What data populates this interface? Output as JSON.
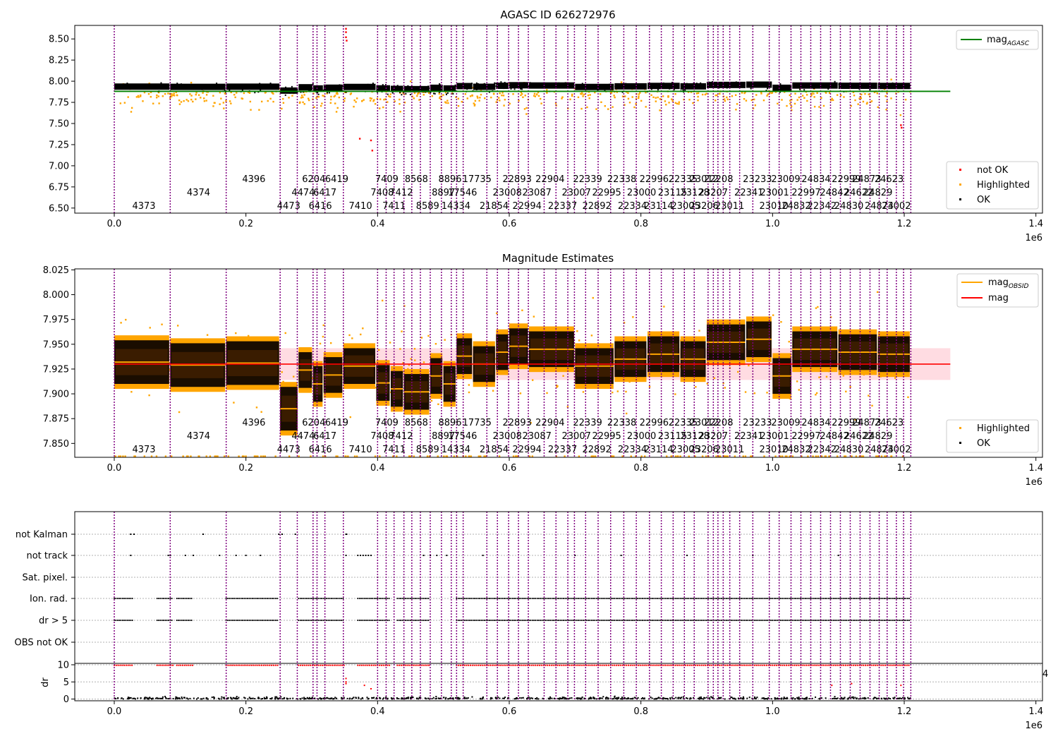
{
  "colors": {
    "obsid_line": "#800080",
    "agasc_mag_line": "#008000",
    "mag_line": "#ff0000",
    "mag_obsid": "#ffa500",
    "highlighted": "#ffa500",
    "not_ok": "#ff0000",
    "ok": "#000000",
    "mag_band": "#ffc0cb",
    "grid": "#b0b0b0"
  },
  "chart_data": [
    {
      "type": "scatter",
      "title": "AGASC ID 626272976",
      "xlabel": "",
      "ylabel": "",
      "xlim": [
        -60000,
        1410000
      ],
      "ylim": [
        6.44,
        8.66
      ],
      "x_ticks": [
        0,
        0.2,
        0.4,
        0.6,
        0.8,
        1.0,
        1.2,
        1.4
      ],
      "x_tick_labels": [
        "0.0",
        "0.2",
        "0.4",
        "0.6",
        "0.8",
        "1.0",
        "1.2",
        "1.4"
      ],
      "x_offset_label": "1e6",
      "y_ticks": [
        6.5,
        6.75,
        7.0,
        7.25,
        7.5,
        7.75,
        8.0,
        8.25,
        8.5
      ],
      "y_tick_labels": [
        "6.50",
        "6.75",
        "7.00",
        "7.25",
        "7.50",
        "7.75",
        "8.00",
        "8.25",
        "8.50"
      ],
      "lines": [
        {
          "name": "mag_AGASC",
          "label_main": "mag",
          "label_sub": "AGASC",
          "y": 7.88,
          "x_range": [
            0,
            1270000
          ]
        }
      ],
      "scatter_series": [
        {
          "name": "not OK",
          "marker_color": "#ff0000"
        },
        {
          "name": "Highlighted",
          "marker_color": "#ffa500"
        },
        {
          "name": "OK",
          "marker_color": "#000000"
        }
      ],
      "legend_upper": "top-right",
      "legend_lower": "bottom-right"
    },
    {
      "type": "scatter",
      "title": "Magnitude Estimates",
      "xlabel": "",
      "ylabel": "",
      "xlim": [
        -60000,
        1410000
      ],
      "ylim": [
        7.836,
        8.026
      ],
      "x_ticks": [
        0,
        0.2,
        0.4,
        0.6,
        0.8,
        1.0,
        1.2,
        1.4
      ],
      "x_tick_labels": [
        "0.0",
        "0.2",
        "0.4",
        "0.6",
        "0.8",
        "1.0",
        "1.2",
        "1.4"
      ],
      "x_offset_label": "1e6",
      "y_ticks": [
        7.85,
        7.875,
        7.9,
        7.925,
        7.95,
        7.975,
        8.0,
        8.025
      ],
      "y_tick_labels": [
        "7.850",
        "7.875",
        "7.900",
        "7.925",
        "7.950",
        "7.975",
        "8.000",
        "8.025"
      ],
      "lines": [
        {
          "name": "mag_OBSID",
          "label_main": "mag",
          "label_sub": "OBSID"
        },
        {
          "name": "mag",
          "label_main": "mag",
          "y": 7.93,
          "band": [
            7.914,
            7.946
          ],
          "x_range": [
            0,
            1270000
          ]
        }
      ],
      "scatter_series": [
        {
          "name": "Highlighted",
          "marker_color": "#ffa500"
        },
        {
          "name": "OK",
          "marker_color": "#000000"
        }
      ],
      "obsid_segments": [
        {
          "x0": 0,
          "x1": 85000,
          "mag": 7.932
        },
        {
          "x0": 85000,
          "x1": 170000,
          "mag": 7.929
        },
        {
          "x0": 170000,
          "x1": 252000,
          "mag": 7.931
        },
        {
          "x0": 252000,
          "x1": 280000,
          "mag": 7.885
        },
        {
          "x0": 280000,
          "x1": 302000,
          "mag": 7.924
        },
        {
          "x0": 302000,
          "x1": 318000,
          "mag": 7.91
        },
        {
          "x0": 318000,
          "x1": 348000,
          "mag": 7.919
        },
        {
          "x0": 348000,
          "x1": 398000,
          "mag": 7.928
        },
        {
          "x0": 398000,
          "x1": 420000,
          "mag": 7.911
        },
        {
          "x0": 420000,
          "x1": 440000,
          "mag": 7.905
        },
        {
          "x0": 440000,
          "x1": 480000,
          "mag": 7.902
        },
        {
          "x0": 480000,
          "x1": 500000,
          "mag": 7.918
        },
        {
          "x0": 500000,
          "x1": 520000,
          "mag": 7.91
        },
        {
          "x0": 520000,
          "x1": 545000,
          "mag": 7.938
        },
        {
          "x0": 545000,
          "x1": 580000,
          "mag": 7.93
        },
        {
          "x0": 580000,
          "x1": 600000,
          "mag": 7.942
        },
        {
          "x0": 600000,
          "x1": 630000,
          "mag": 7.948
        },
        {
          "x0": 630000,
          "x1": 700000,
          "mag": 7.945
        },
        {
          "x0": 700000,
          "x1": 760000,
          "mag": 7.928
        },
        {
          "x0": 760000,
          "x1": 810000,
          "mag": 7.935
        },
        {
          "x0": 810000,
          "x1": 860000,
          "mag": 7.94
        },
        {
          "x0": 860000,
          "x1": 900000,
          "mag": 7.935
        },
        {
          "x0": 900000,
          "x1": 960000,
          "mag": 7.952
        },
        {
          "x0": 960000,
          "x1": 1000000,
          "mag": 7.955
        },
        {
          "x0": 1000000,
          "x1": 1030000,
          "mag": 7.918
        },
        {
          "x0": 1030000,
          "x1": 1100000,
          "mag": 7.945
        },
        {
          "x0": 1100000,
          "x1": 1160000,
          "mag": 7.942
        },
        {
          "x0": 1160000,
          "x1": 1210000,
          "mag": 7.94
        }
      ],
      "legend_upper": "top-right",
      "legend_lower": "bottom-right"
    },
    {
      "type": "scatter",
      "title": "",
      "xlabel": "",
      "ylabel": "dr",
      "xlim": [
        -60000,
        1410000
      ],
      "x_ticks": [
        0,
        0.2,
        0.4,
        0.6,
        0.8,
        1.0,
        1.2,
        1.4
      ],
      "x_tick_labels": [
        "0.0",
        "0.2",
        "0.4",
        "0.6",
        "0.8",
        "1.0",
        "1.2",
        "1.4"
      ],
      "x_offset_label": "1e6",
      "flag_rows": [
        "not Kalman",
        "not track",
        "Sat. pixel.",
        "Ion. rad.",
        "dr > 5",
        "OBS not OK"
      ],
      "dr_ylim": [
        -0.5,
        10.2
      ],
      "dr_y_ticks": [
        0,
        5,
        10
      ],
      "dr_y_tick_labels": [
        "0",
        "5",
        "10"
      ],
      "right_edge_label": "4"
    }
  ],
  "obsid_lines_x": [
    0,
    85000,
    170000,
    252000,
    278000,
    302000,
    308000,
    320000,
    348000,
    400000,
    413000,
    425000,
    440000,
    452000,
    465000,
    480000,
    497000,
    512000,
    520000,
    530000,
    566000,
    582000,
    599000,
    614000,
    629000,
    653000,
    671000,
    689000,
    699000,
    716000,
    735000,
    754000,
    774000,
    793000,
    813000,
    831000,
    849000,
    866000,
    881000,
    902000,
    910000,
    917000,
    925000,
    935000,
    950000,
    970000,
    995000,
    1010000,
    1028000,
    1043000,
    1058000,
    1073000,
    1088000,
    1103000,
    1118000,
    1133000,
    1148000,
    1162000,
    1174000,
    1188000,
    1199000,
    1210000
  ],
  "obsid_labels": [
    {
      "text": "4373",
      "x": 45000,
      "row": 0
    },
    {
      "text": "4374",
      "x": 128000,
      "row": 1
    },
    {
      "text": "4396",
      "x": 212000,
      "row": 2
    },
    {
      "text": "4473",
      "x": 265000,
      "row": 0
    },
    {
      "text": "4474",
      "x": 287000,
      "row": 1
    },
    {
      "text": "6204",
      "x": 303000,
      "row": 2
    },
    {
      "text": "6416",
      "x": 313000,
      "row": 0
    },
    {
      "text": "6417",
      "x": 320000,
      "row": 1
    },
    {
      "text": "6419",
      "x": 338000,
      "row": 2
    },
    {
      "text": "7410",
      "x": 374000,
      "row": 0
    },
    {
      "text": "7408",
      "x": 407000,
      "row": 1
    },
    {
      "text": "7409",
      "x": 414000,
      "row": 2
    },
    {
      "text": "7411",
      "x": 425000,
      "row": 0
    },
    {
      "text": "7412",
      "x": 436000,
      "row": 1
    },
    {
      "text": "8568",
      "x": 459000,
      "row": 2
    },
    {
      "text": "8589",
      "x": 476000,
      "row": 0
    },
    {
      "text": "8897",
      "x": 500000,
      "row": 1
    },
    {
      "text": "8896",
      "x": 510000,
      "row": 2
    },
    {
      "text": "14334",
      "x": 519000,
      "row": 0
    },
    {
      "text": "17546",
      "x": 529000,
      "row": 1
    },
    {
      "text": "17735",
      "x": 551000,
      "row": 2
    },
    {
      "text": "21854",
      "x": 577000,
      "row": 0
    },
    {
      "text": "23008",
      "x": 597000,
      "row": 1
    },
    {
      "text": "22893",
      "x": 612000,
      "row": 2
    },
    {
      "text": "22994",
      "x": 627000,
      "row": 0
    },
    {
      "text": "23087",
      "x": 642000,
      "row": 1
    },
    {
      "text": "22904",
      "x": 662000,
      "row": 2
    },
    {
      "text": "22337",
      "x": 681000,
      "row": 0
    },
    {
      "text": "23007",
      "x": 702000,
      "row": 1
    },
    {
      "text": "22339",
      "x": 719000,
      "row": 2
    },
    {
      "text": "22892",
      "x": 733000,
      "row": 0
    },
    {
      "text": "22995",
      "x": 748000,
      "row": 1
    },
    {
      "text": "22338",
      "x": 771000,
      "row": 2
    },
    {
      "text": "22334",
      "x": 787000,
      "row": 0
    },
    {
      "text": "23000",
      "x": 801000,
      "row": 1
    },
    {
      "text": "22996",
      "x": 820000,
      "row": 2
    },
    {
      "text": "23114",
      "x": 827000,
      "row": 0
    },
    {
      "text": "23115",
      "x": 848000,
      "row": 1
    },
    {
      "text": "22335",
      "x": 864000,
      "row": 2
    },
    {
      "text": "23005",
      "x": 868000,
      "row": 0
    },
    {
      "text": "23128",
      "x": 882000,
      "row": 1
    },
    {
      "text": "23012",
      "x": 896000,
      "row": 2
    },
    {
      "text": "23206",
      "x": 896000,
      "row": 0
    },
    {
      "text": "23207",
      "x": 910000,
      "row": 1
    },
    {
      "text": "22208",
      "x": 918000,
      "row": 2
    },
    {
      "text": "23011",
      "x": 935000,
      "row": 0
    },
    {
      "text": "22341",
      "x": 964000,
      "row": 1
    },
    {
      "text": "23233",
      "x": 977000,
      "row": 2
    },
    {
      "text": "23010",
      "x": 1002000,
      "row": 0
    },
    {
      "text": "23001",
      "x": 1003000,
      "row": 1
    },
    {
      "text": "23009",
      "x": 1020000,
      "row": 2
    },
    {
      "text": "24832",
      "x": 1036000,
      "row": 0
    },
    {
      "text": "22997",
      "x": 1051000,
      "row": 1
    },
    {
      "text": "24834",
      "x": 1066000,
      "row": 2
    },
    {
      "text": "22342",
      "x": 1075000,
      "row": 0
    },
    {
      "text": "24842",
      "x": 1094000,
      "row": 1
    },
    {
      "text": "22999",
      "x": 1112000,
      "row": 2
    },
    {
      "text": "24830",
      "x": 1116000,
      "row": 0
    },
    {
      "text": "24622",
      "x": 1131000,
      "row": 1
    },
    {
      "text": "24873",
      "x": 1143000,
      "row": 2
    },
    {
      "text": "24874",
      "x": 1162000,
      "row": 0
    },
    {
      "text": "24829",
      "x": 1160000,
      "row": 1
    },
    {
      "text": "24623",
      "x": 1177000,
      "row": 2
    },
    {
      "text": "23002",
      "x": 1188000,
      "row": 0
    }
  ]
}
